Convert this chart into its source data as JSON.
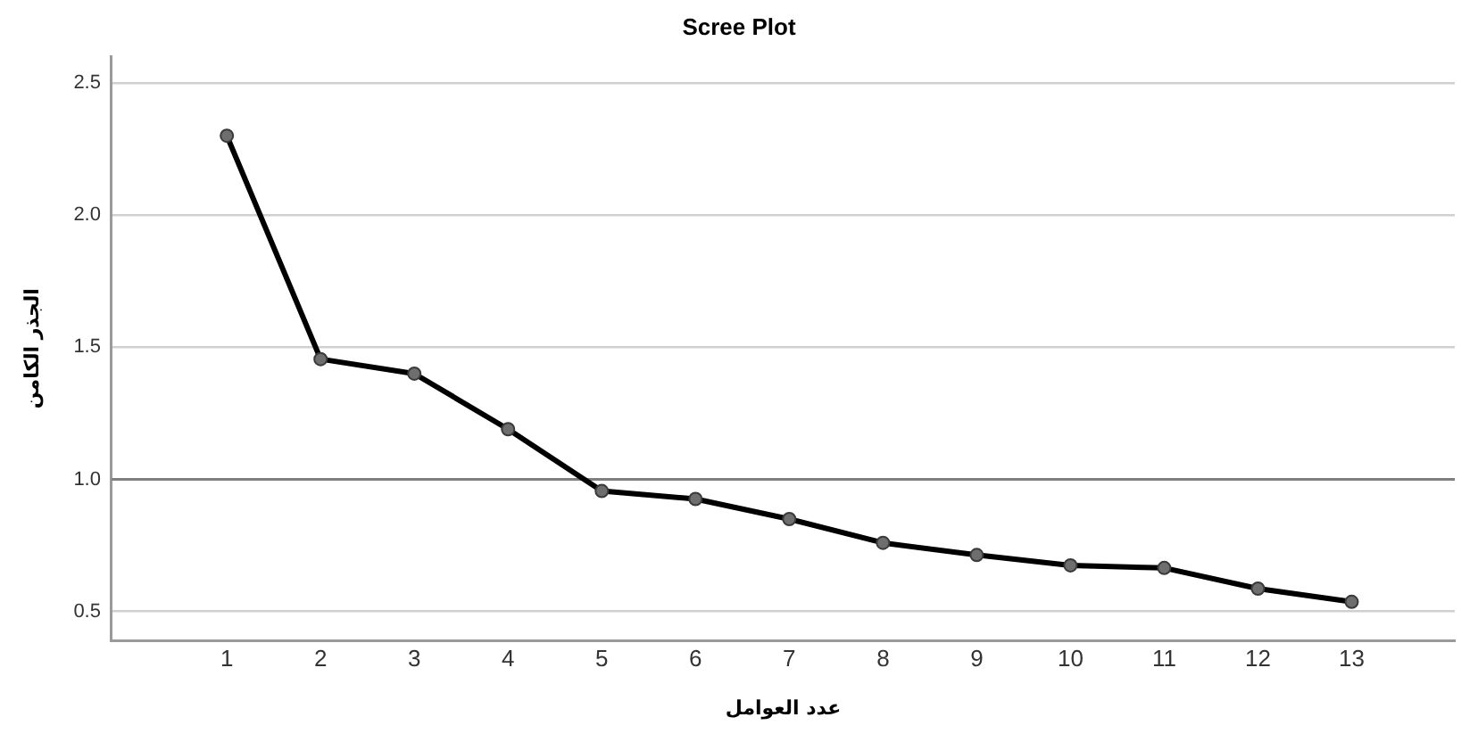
{
  "chart_data": {
    "type": "line",
    "title": "Scree Plot",
    "xlabel": "عدد العوامل",
    "ylabel": "الجذر الكامن",
    "x": [
      1,
      2,
      3,
      4,
      5,
      6,
      7,
      8,
      9,
      10,
      11,
      12,
      13
    ],
    "series": [
      {
        "color": "#000000",
        "values": [
          2.3,
          1.455,
          1.4,
          1.19,
          0.956,
          0.926,
          0.85,
          0.76,
          0.714,
          0.675,
          0.665,
          0.587,
          0.537
        ]
      }
    ],
    "xlim": [
      -0.23,
      14.1
    ],
    "xticks": [
      1,
      2,
      3,
      4,
      5,
      6,
      7,
      8,
      9,
      10,
      11,
      12,
      13
    ],
    "ylim": [
      0.39,
      2.6
    ],
    "yticks": [
      0.5,
      {
        "value": 1,
        "label": "1.0"
      },
      1.5,
      {
        "value": 2,
        "label": "2.0"
      },
      2.5
    ],
    "ref_lines": [
      {
        "axis": "y",
        "value": 1.0,
        "color": "#7f7f7f"
      }
    ],
    "grid": "y",
    "legend": false,
    "marker": "circle",
    "line_style": "solid"
  }
}
